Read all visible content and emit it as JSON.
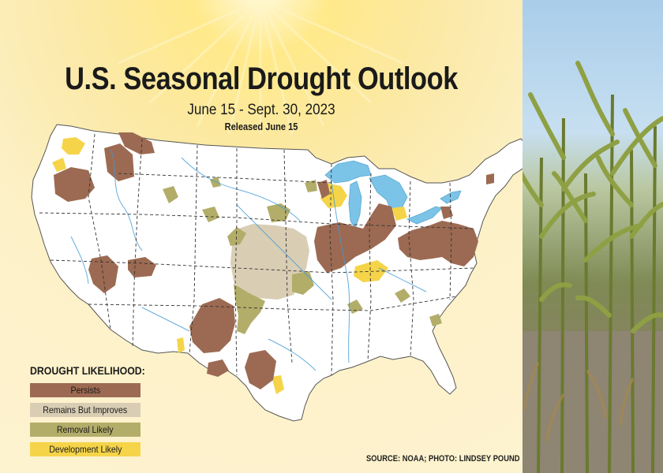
{
  "title": "U.S. Seasonal Drought Outlook",
  "subtitle": "June 15 - Sept. 30, 2023",
  "released": "Released June 15",
  "legend": {
    "title": "DROUGHT LIKELIHOOD:",
    "items": [
      {
        "label": "Persists",
        "color": "#9c6a52"
      },
      {
        "label": "Remains But Improves",
        "color": "#d9ceb4"
      },
      {
        "label": "Removal Likely",
        "color": "#b3ad6a"
      },
      {
        "label": "Development Likely",
        "color": "#f5d449"
      }
    ]
  },
  "source": "SOURCE: NOAA; PHOTO: LINDSEY POUND",
  "colors": {
    "land": "#ffffff",
    "water": "#7cc3e8",
    "rivers": "#3f9ad6",
    "borders": "#333333"
  }
}
